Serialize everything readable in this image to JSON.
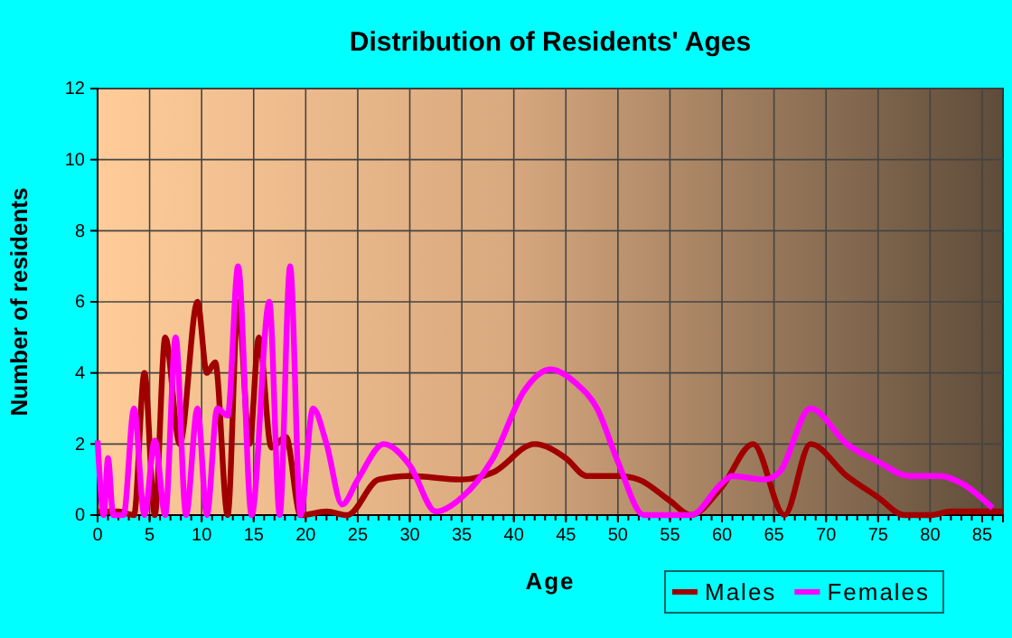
{
  "chart_data": {
    "type": "line",
    "title": "Distribution of Residents' Ages",
    "xlabel": "Age",
    "ylabel": "Number of residents",
    "xlim": [
      0,
      87
    ],
    "xticks": [
      0,
      5,
      10,
      15,
      20,
      25,
      30,
      35,
      40,
      45,
      50,
      55,
      60,
      65,
      70,
      75,
      80,
      85
    ],
    "ylim": [
      0,
      12
    ],
    "yticks": [
      0,
      2,
      4,
      6,
      8,
      10,
      12
    ],
    "grid": true,
    "legend": "bottom right",
    "marker": "none",
    "series": [
      {
        "name": "Males",
        "color": "#a00000",
        "x": [
          0,
          2,
          3.5,
          4.5,
          5.5,
          6.5,
          7.9,
          9.6,
          10.5,
          11.3,
          12.5,
          13.5,
          14.6,
          15.5,
          16.7,
          18.1,
          19.5,
          22,
          24,
          27,
          30,
          35,
          38,
          42,
          45,
          47,
          50,
          52,
          55,
          57,
          60,
          63,
          66,
          68.5,
          72,
          75,
          77.5,
          80,
          82,
          87
        ],
        "values": [
          0.1,
          0.1,
          0,
          4,
          0,
          5,
          2,
          6,
          4,
          4.3,
          0,
          6,
          2,
          5,
          1.9,
          2.2,
          0,
          0.1,
          0,
          1,
          1.1,
          1,
          1.2,
          2,
          1.6,
          1.1,
          1.1,
          1,
          0.4,
          0,
          0.8,
          2,
          0,
          2,
          1.1,
          0.5,
          0,
          0,
          0.1,
          0.1
        ]
      },
      {
        "name": "Females",
        "color": "#ff00ff",
        "x": [
          0,
          0.6,
          1,
          1.5,
          2.5,
          3.5,
          4.5,
          5.5,
          6.5,
          7.5,
          8.5,
          9.6,
          10.5,
          11.5,
          12.5,
          13.5,
          14.8,
          16.5,
          17.5,
          18.5,
          19.5,
          20.7,
          22,
          23.5,
          25,
          27.5,
          30,
          32.5,
          35,
          38,
          41,
          43.5,
          46,
          48,
          50,
          52.5,
          57,
          60,
          61,
          64,
          65.5,
          68.5,
          72,
          75,
          78,
          81,
          83,
          86
        ],
        "values": [
          2.1,
          0,
          1.6,
          0,
          0,
          3,
          0,
          2.1,
          0,
          5,
          0,
          3,
          0,
          3,
          2.8,
          7,
          0,
          6,
          0,
          7,
          0,
          3,
          2,
          0.3,
          1,
          2,
          1.4,
          0.1,
          0.5,
          1.6,
          3.5,
          4.1,
          3.7,
          3,
          1.5,
          0,
          0,
          0.9,
          1.1,
          1,
          1.2,
          3,
          2,
          1.5,
          1.1,
          1.1,
          0.9,
          0.2
        ]
      }
    ]
  }
}
